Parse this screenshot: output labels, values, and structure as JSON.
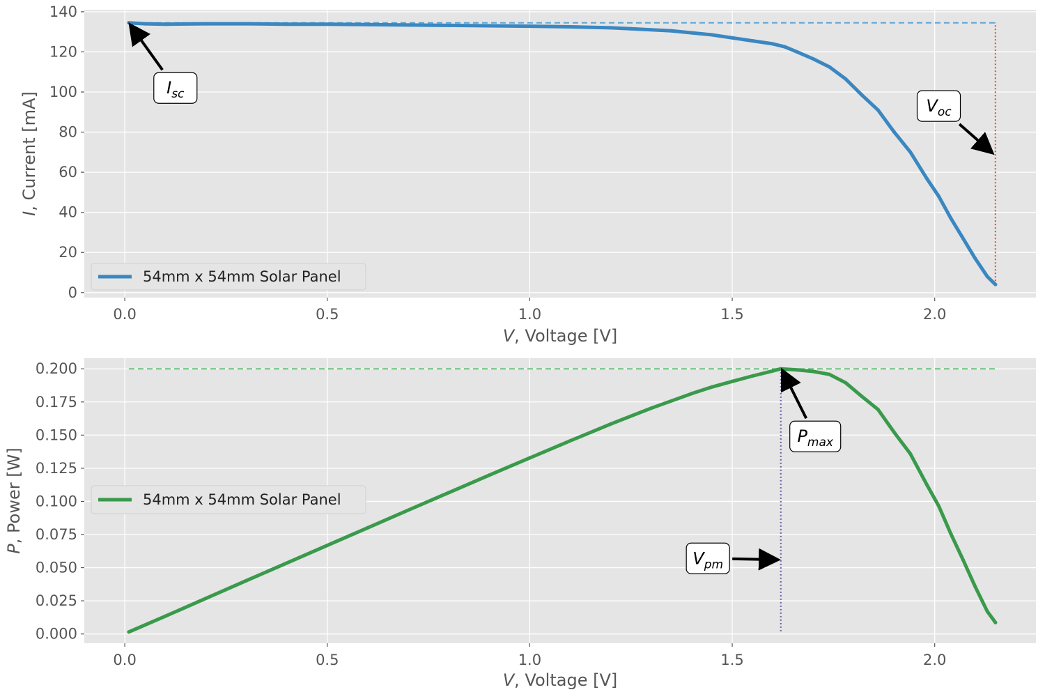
{
  "chart_data": [
    {
      "type": "line",
      "title": "",
      "xlabel_var": "V",
      "xlabel": ", Voltage [V]",
      "ylabel_var": "I",
      "ylabel": ", Current [mA]",
      "xlim": [
        -0.1,
        2.25
      ],
      "ylim": [
        -2.5,
        141
      ],
      "xticks": [
        0.0,
        0.5,
        1.0,
        1.5,
        2.0
      ],
      "xtick_labels": [
        "0.0",
        "0.5",
        "1.0",
        "1.5",
        "2.0"
      ],
      "yticks": [
        0,
        20,
        40,
        60,
        80,
        100,
        120,
        140
      ],
      "ytick_labels": [
        "0",
        "20",
        "40",
        "60",
        "80",
        "100",
        "120",
        "140"
      ],
      "grid": true,
      "legend_placement": "lower-left",
      "series": [
        {
          "name": "54mm x 54mm Solar Panel",
          "color": "#3a87c1",
          "x": [
            0.01,
            0.05,
            0.1,
            0.2,
            0.3,
            0.4,
            0.5,
            0.6,
            0.7,
            0.8,
            0.9,
            1.0,
            1.1,
            1.2,
            1.25,
            1.3,
            1.35,
            1.4,
            1.45,
            1.5,
            1.55,
            1.6,
            1.63,
            1.66,
            1.7,
            1.74,
            1.78,
            1.82,
            1.86,
            1.9,
            1.94,
            1.98,
            2.01,
            2.04,
            2.07,
            2.1,
            2.13,
            2.15
          ],
          "y": [
            134.5,
            134,
            133.8,
            134,
            134,
            133.8,
            133.8,
            133.6,
            133.4,
            133.2,
            133,
            132.8,
            132.5,
            132,
            131.5,
            131,
            130.5,
            129.5,
            128.5,
            127,
            125.5,
            124,
            122.5,
            120,
            116.5,
            112.5,
            106.5,
            98.5,
            91,
            80,
            70,
            57,
            48,
            37,
            27,
            17,
            8,
            4
          ]
        }
      ],
      "reference_lines": [
        {
          "orientation": "horizontal",
          "y": 134.5,
          "x_range": [
            0.01,
            2.15
          ],
          "style": "dashed",
          "color": "#5ca6d6"
        },
        {
          "orientation": "vertical",
          "x": 2.15,
          "y_range": [
            4,
            134.5
          ],
          "style": "dotted",
          "color": "#e8542a"
        }
      ],
      "annotations": [
        {
          "main": "I",
          "sub": "sc",
          "label_at": [
            0.125,
            102
          ],
          "arrow_to": [
            0.015,
            133
          ]
        },
        {
          "main": "V",
          "sub": "oc",
          "label_at": [
            2.01,
            93
          ],
          "arrow_to": [
            2.14,
            70
          ]
        }
      ]
    },
    {
      "type": "line",
      "title": "",
      "xlabel_var": "V",
      "xlabel": ", Voltage [V]",
      "ylabel_var": "P",
      "ylabel": ", Power [W]",
      "xlim": [
        -0.1,
        2.25
      ],
      "ylim": [
        -0.007,
        0.208
      ],
      "xticks": [
        0.0,
        0.5,
        1.0,
        1.5,
        2.0
      ],
      "xtick_labels": [
        "0.0",
        "0.5",
        "1.0",
        "1.5",
        "2.0"
      ],
      "yticks": [
        0.0,
        0.025,
        0.05,
        0.075,
        0.1,
        0.125,
        0.15,
        0.175,
        0.2
      ],
      "ytick_labels": [
        "0.000",
        "0.025",
        "0.050",
        "0.075",
        "0.100",
        "0.125",
        "0.150",
        "0.175",
        "0.200"
      ],
      "grid": true,
      "legend_placement": "center-left",
      "series": [
        {
          "name": "54mm x 54mm Solar Panel",
          "color": "#3a9a4c",
          "x": [
            0.01,
            0.1,
            0.2,
            0.3,
            0.4,
            0.5,
            0.6,
            0.7,
            0.8,
            0.9,
            1.0,
            1.1,
            1.2,
            1.3,
            1.4,
            1.45,
            1.5,
            1.55,
            1.6,
            1.62,
            1.66,
            1.7,
            1.74,
            1.78,
            1.82,
            1.86,
            1.9,
            1.94,
            1.98,
            2.01,
            2.04,
            2.07,
            2.1,
            2.13,
            2.15
          ],
          "y": [
            0.0015,
            0.0134,
            0.0268,
            0.0402,
            0.0535,
            0.0668,
            0.0801,
            0.0934,
            0.1066,
            0.1198,
            0.1328,
            0.1457,
            0.1584,
            0.1703,
            0.1813,
            0.1863,
            0.1905,
            0.1946,
            0.1984,
            0.2,
            0.1992,
            0.198,
            0.1958,
            0.1895,
            0.1792,
            0.1693,
            0.152,
            0.1358,
            0.1129,
            0.0965,
            0.0755,
            0.0559,
            0.0357,
            0.017,
            0.0086
          ]
        }
      ],
      "reference_lines": [
        {
          "orientation": "horizontal",
          "y": 0.2,
          "x_range": [
            0.01,
            2.15
          ],
          "style": "dashed",
          "color": "#6cc47e"
        },
        {
          "orientation": "vertical",
          "x": 1.62,
          "y_range": [
            0.002,
            0.2
          ],
          "style": "dotted",
          "color": "#6a6aaa"
        }
      ],
      "annotations": [
        {
          "main": "P",
          "sub": "max",
          "label_at": [
            1.705,
            0.149
          ],
          "arrow_to": [
            1.625,
            0.198
          ]
        },
        {
          "main": "V",
          "sub": "pm",
          "label_at": [
            1.44,
            0.057
          ],
          "arrow_to": [
            1.61,
            0.056
          ]
        }
      ]
    }
  ]
}
